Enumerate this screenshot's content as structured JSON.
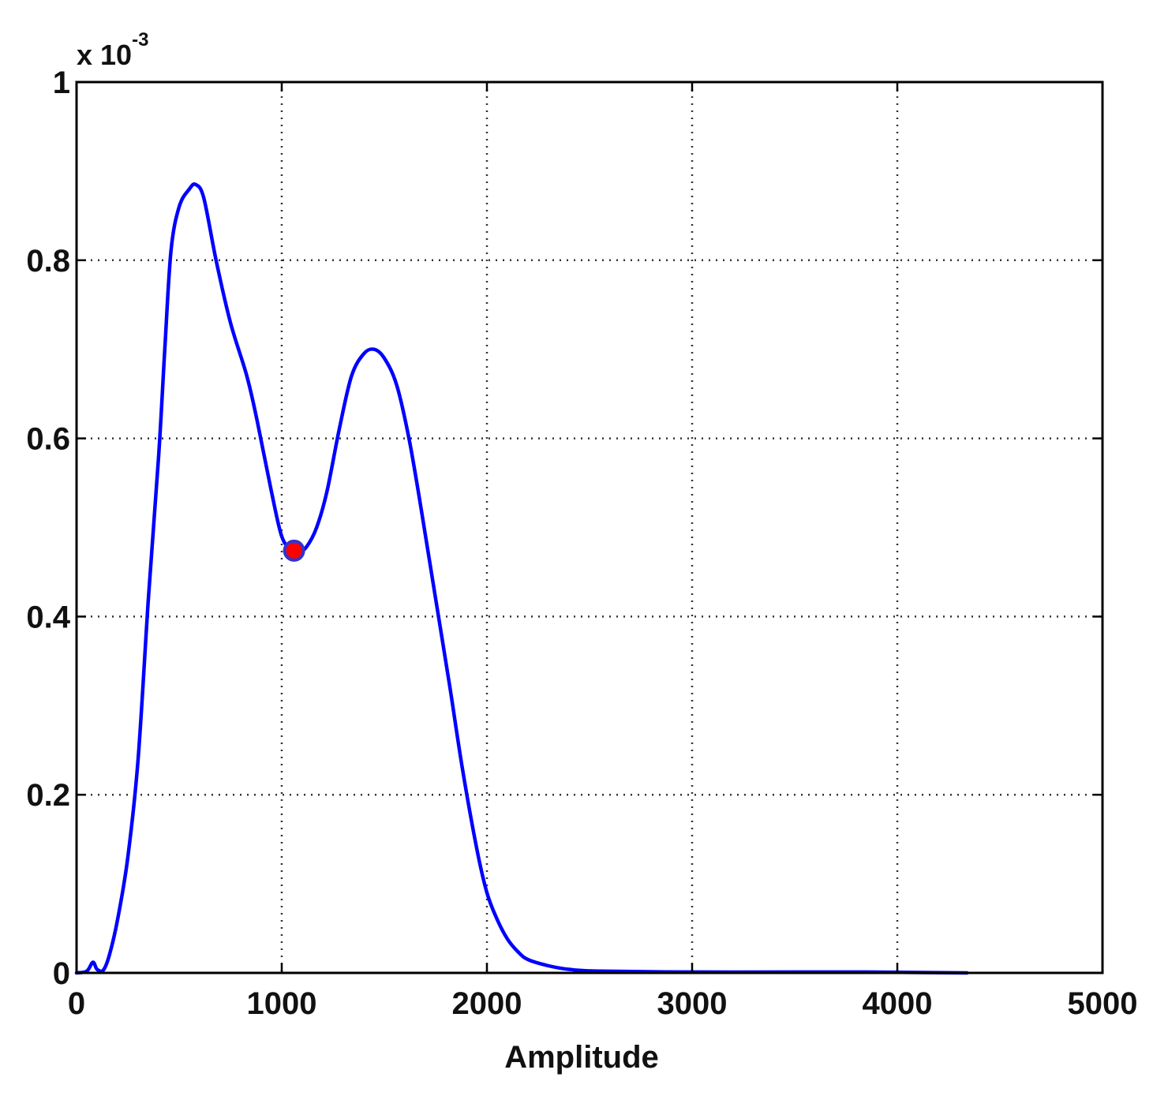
{
  "chart_data": {
    "type": "line",
    "xlabel": "Amplitude",
    "ylabel": "",
    "y_multiplier": {
      "base": "x 10",
      "exponent": "-3"
    },
    "xlim": [
      0,
      5000
    ],
    "ylim": [
      0,
      1
    ],
    "x_ticks": [
      "0",
      "1000",
      "2000",
      "3000",
      "4000",
      "5000"
    ],
    "y_ticks": [
      "0",
      "0.2",
      "0.4",
      "0.6",
      "0.8",
      "1"
    ],
    "grid": true,
    "colors": {
      "line": "#0000ff",
      "marker_fill": "#ff0000",
      "marker_edge": "#3333cc",
      "axes": "#000000",
      "grid": "#333333"
    },
    "series": [
      {
        "x": [
          0,
          50,
          80,
          100,
          130,
          160,
          200,
          250,
          300,
          350,
          400,
          430,
          460,
          500,
          550,
          580,
          620,
          680,
          750,
          830,
          880,
          950,
          1000,
          1050,
          1080,
          1120,
          1170,
          1220,
          1280,
          1340,
          1400,
          1450,
          1500,
          1560,
          1620,
          1680,
          1750,
          1820,
          1880,
          1950,
          2000,
          2050,
          2100,
          2150,
          2200,
          2300,
          2400,
          2550,
          3000,
          3500,
          3850,
          4340
        ],
        "y": [
          0.0,
          0.002,
          0.012,
          0.004,
          0.003,
          0.02,
          0.06,
          0.13,
          0.24,
          0.42,
          0.58,
          0.7,
          0.81,
          0.86,
          0.88,
          0.885,
          0.87,
          0.8,
          0.73,
          0.67,
          0.62,
          0.54,
          0.49,
          0.474,
          0.472,
          0.478,
          0.5,
          0.54,
          0.61,
          0.67,
          0.695,
          0.7,
          0.69,
          0.66,
          0.6,
          0.52,
          0.42,
          0.32,
          0.23,
          0.14,
          0.09,
          0.06,
          0.038,
          0.024,
          0.015,
          0.008,
          0.004,
          0.002,
          0.001,
          0.001,
          0.001,
          0.0
        ]
      }
    ],
    "marker": {
      "x": 1060,
      "y": 0.474
    }
  }
}
